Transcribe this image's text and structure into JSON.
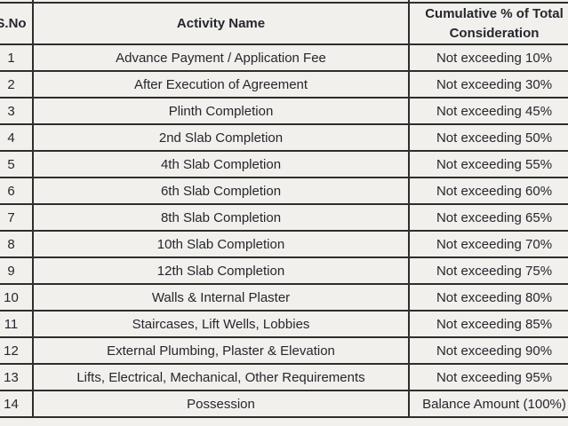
{
  "colors": {
    "background": "#f1f0ec",
    "text": "#26262e",
    "border": "#2e2e2e"
  },
  "table": {
    "header": {
      "sno": "S.No",
      "activity": "Activity Name",
      "cumulative": "Cumulative % of Total Consideration"
    },
    "rows": [
      {
        "sno": "1",
        "activity": "Advance Payment / Application Fee",
        "cumulative": "Not exceeding 10%"
      },
      {
        "sno": "2",
        "activity": "After Execution of Agreement",
        "cumulative": "Not exceeding 30%"
      },
      {
        "sno": "3",
        "activity": "Plinth Completion",
        "cumulative": "Not exceeding 45%"
      },
      {
        "sno": "4",
        "activity": "2nd Slab Completion",
        "cumulative": "Not exceeding 50%"
      },
      {
        "sno": "5",
        "activity": "4th Slab Completion",
        "cumulative": "Not exceeding 55%"
      },
      {
        "sno": "6",
        "activity": "6th Slab Completion",
        "cumulative": "Not exceeding 60%"
      },
      {
        "sno": "7",
        "activity": "8th Slab Completion",
        "cumulative": "Not exceeding 65%"
      },
      {
        "sno": "8",
        "activity": "10th Slab Completion",
        "cumulative": "Not exceeding 70%"
      },
      {
        "sno": "9",
        "activity": "12th Slab Completion",
        "cumulative": "Not exceeding 75%"
      },
      {
        "sno": "10",
        "activity": "Walls & Internal Plaster",
        "cumulative": "Not exceeding 80%"
      },
      {
        "sno": "11",
        "activity": "Staircases, Lift Wells, Lobbies",
        "cumulative": "Not exceeding 85%"
      },
      {
        "sno": "12",
        "activity": "External Plumbing, Plaster & Elevation",
        "cumulative": "Not exceeding 90%"
      },
      {
        "sno": "13",
        "activity": "Lifts, Electrical, Mechanical, Other Requirements",
        "cumulative": "Not exceeding 95%"
      },
      {
        "sno": "14",
        "activity": "Possession",
        "cumulative": "Balance Amount (100%)"
      }
    ]
  }
}
